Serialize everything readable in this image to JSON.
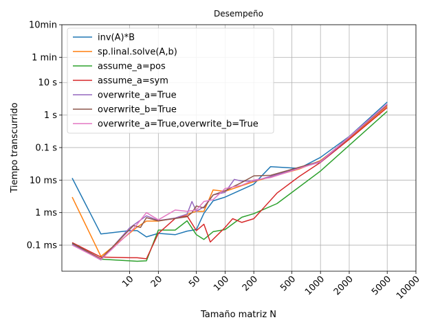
{
  "chart_data": {
    "type": "line",
    "title": "Desempeño",
    "xlabel": "Tamaño matriz N",
    "ylabel": "Tiempo transcurrido",
    "x_scale": "log",
    "y_scale": "log",
    "grid": true,
    "legend_position": "top-left",
    "xlim": [
      1.95,
      10000
    ],
    "ylim_seconds": [
      1.58e-05,
      600
    ],
    "x_ticks": [
      {
        "value": 10,
        "label": "10"
      },
      {
        "value": 20,
        "label": "20"
      },
      {
        "value": 50,
        "label": "50"
      },
      {
        "value": 100,
        "label": "100"
      },
      {
        "value": 200,
        "label": "200"
      },
      {
        "value": 500,
        "label": "500"
      },
      {
        "value": 1000,
        "label": "1000"
      },
      {
        "value": 2000,
        "label": "2000"
      },
      {
        "value": 5000,
        "label": "5000"
      },
      {
        "value": 10000,
        "label": "10000"
      }
    ],
    "y_ticks": [
      {
        "value": 0.0001,
        "label": "0.1 ms"
      },
      {
        "value": 0.001,
        "label": "1 ms"
      },
      {
        "value": 0.01,
        "label": "10 ms"
      },
      {
        "value": 0.1,
        "label": "0.1 s"
      },
      {
        "value": 1,
        "label": "1 s"
      },
      {
        "value": 10,
        "label": "10 s"
      },
      {
        "value": 60,
        "label": "1 min"
      },
      {
        "value": 600,
        "label": "10min"
      }
    ],
    "series": [
      {
        "name": "inv(A)*B",
        "color": "#1f77b4",
        "x": [
          2.5,
          5,
          10,
          12,
          15,
          20,
          30,
          40,
          50,
          60,
          75,
          100,
          200,
          300,
          600,
          1000,
          2000,
          5000
        ],
        "y": [
          0.0115,
          0.00022,
          0.00028,
          0.00028,
          0.00018,
          0.00023,
          0.00021,
          0.00027,
          0.0003,
          0.00095,
          0.0023,
          0.003,
          0.0075,
          0.026,
          0.023,
          0.05,
          0.22,
          2.5
        ]
      },
      {
        "name": "sp.linal.solve(A,b)",
        "color": "#ff7f0e",
        "x": [
          2.5,
          5,
          12,
          15,
          20,
          30,
          40,
          50,
          60,
          75,
          100,
          200,
          600,
          1000,
          2000,
          5000
        ],
        "y": [
          0.003,
          4.5e-05,
          0.00036,
          0.00055,
          0.00055,
          0.00068,
          0.00088,
          0.0011,
          0.0011,
          0.005,
          0.0045,
          0.009,
          0.022,
          0.04,
          0.19,
          1.9
        ]
      },
      {
        "name": "assume_a=pos",
        "color": "#2ca02c",
        "x": [
          2.5,
          5,
          10,
          12,
          15,
          20,
          30,
          40,
          50,
          60,
          75,
          100,
          150,
          200,
          350,
          1000,
          5000
        ],
        "y": [
          0.00011,
          3.7e-05,
          3.3e-05,
          3.2e-05,
          3.3e-05,
          0.00029,
          0.00029,
          0.00056,
          0.00021,
          0.00015,
          0.00026,
          0.0003,
          0.00072,
          0.00093,
          0.0019,
          0.019,
          1.3
        ]
      },
      {
        "name": "assume_a=sym",
        "color": "#d62728",
        "x": [
          2.5,
          5,
          10,
          12,
          15,
          20,
          30,
          40,
          50,
          60,
          70,
          100,
          120,
          150,
          200,
          350,
          600,
          1000,
          2000,
          5000
        ],
        "y": [
          0.00012,
          4.3e-05,
          4.1e-05,
          4.1e-05,
          3.8e-05,
          0.00023,
          0.00066,
          0.0008,
          0.00028,
          0.00044,
          0.000125,
          0.00035,
          0.00065,
          0.0005,
          0.00065,
          0.004,
          0.013,
          0.035,
          0.18,
          1.7
        ]
      },
      {
        "name": "overwrite_a=True",
        "color": "#9467bd",
        "x": [
          2.5,
          5,
          10,
          15,
          20,
          30,
          40,
          45,
          50,
          60,
          75,
          100,
          125,
          150,
          200,
          1000,
          5000
        ],
        "y": [
          0.000105,
          3.5e-05,
          0.00034,
          0.0008,
          0.00057,
          0.00068,
          0.0009,
          0.0022,
          0.0011,
          0.0015,
          0.0035,
          0.0042,
          0.0105,
          0.0093,
          0.0093,
          0.036,
          2.05
        ]
      },
      {
        "name": "overwrite_b=True",
        "color": "#8c564b",
        "x": [
          2.5,
          5,
          11,
          13,
          15,
          20,
          30,
          40,
          45,
          50,
          60,
          75,
          100,
          150,
          200,
          300,
          1000,
          5000
        ],
        "y": [
          0.000115,
          3.8e-05,
          0.0004,
          0.00035,
          0.0007,
          0.00056,
          0.00066,
          0.00075,
          0.001,
          0.0016,
          0.0014,
          0.0035,
          0.0047,
          0.0085,
          0.0135,
          0.014,
          0.038,
          2.1
        ]
      },
      {
        "name": "overwrite_a=True,overwrite_b=True",
        "color": "#e377c2",
        "x": [
          2.5,
          5,
          11,
          15,
          20,
          30,
          40,
          50,
          60,
          75,
          100,
          150,
          200,
          300,
          1000,
          5000
        ],
        "y": [
          0.0001,
          3.6e-05,
          0.00032,
          0.001,
          0.0006,
          0.0012,
          0.0011,
          0.0012,
          0.0022,
          0.0025,
          0.0055,
          0.007,
          0.01,
          0.012,
          0.037,
          2.2
        ]
      }
    ]
  }
}
